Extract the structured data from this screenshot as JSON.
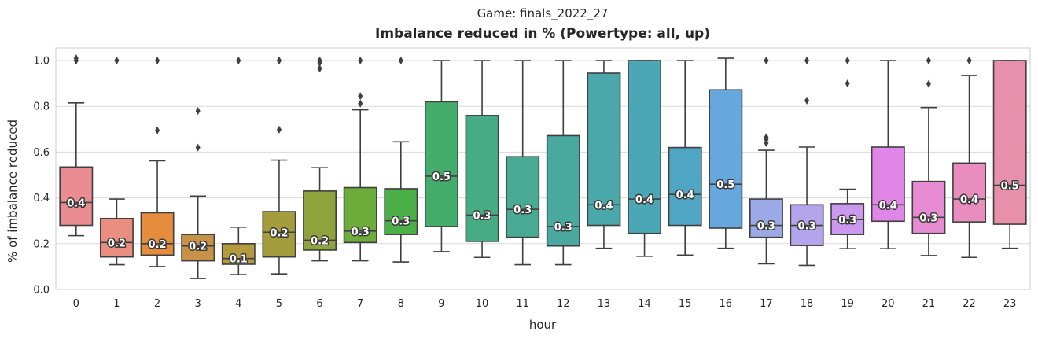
{
  "suptitle": "Game: finals_2022_27",
  "chart_data": {
    "type": "box",
    "title": "Imbalance reduced in % (Powertype: all, up)",
    "xlabel": "hour",
    "ylabel": "% of imbalance reduced",
    "ylim": [
      0.0,
      1.05
    ],
    "yticks": [
      0.0,
      0.2,
      0.4,
      0.6,
      0.8,
      1.0
    ],
    "ytick_labels": [
      "0.0",
      "0.2",
      "0.4",
      "0.6",
      "0.8",
      "1.0"
    ],
    "grid": true,
    "categories": [
      "0",
      "1",
      "2",
      "3",
      "4",
      "5",
      "6",
      "7",
      "8",
      "9",
      "10",
      "11",
      "12",
      "13",
      "14",
      "15",
      "16",
      "17",
      "18",
      "19",
      "20",
      "21",
      "22",
      "23"
    ],
    "boxes": [
      {
        "hour": "0",
        "color": "#e98d93",
        "whislo": 0.235,
        "q1": 0.28,
        "median": 0.38,
        "q3": 0.535,
        "whishi": 0.815,
        "fliers": [
          1.0,
          1.0,
          1.01
        ],
        "median_label": "0.4"
      },
      {
        "hour": "1",
        "color": "#ea8f7f",
        "whislo": 0.108,
        "q1": 0.142,
        "median": 0.205,
        "q3": 0.31,
        "whishi": 0.395,
        "fliers": [
          1.0,
          1.0
        ],
        "median_label": "0.2"
      },
      {
        "hour": "2",
        "color": "#e58d3d",
        "whislo": 0.1,
        "q1": 0.15,
        "median": 0.2,
        "q3": 0.335,
        "whishi": 0.562,
        "fliers": [
          0.695,
          1.0
        ],
        "median_label": "0.2"
      },
      {
        "hour": "3",
        "color": "#c79247",
        "whislo": 0.048,
        "q1": 0.125,
        "median": 0.19,
        "q3": 0.24,
        "whishi": 0.408,
        "fliers": [
          0.62,
          0.78
        ],
        "median_label": "0.2"
      },
      {
        "hour": "4",
        "color": "#b49a3e",
        "whislo": 0.065,
        "q1": 0.11,
        "median": 0.135,
        "q3": 0.2,
        "whishi": 0.272,
        "fliers": [
          1.0
        ],
        "median_label": "0.1"
      },
      {
        "hour": "5",
        "color": "#a39d3d",
        "whislo": 0.068,
        "q1": 0.142,
        "median": 0.25,
        "q3": 0.34,
        "whishi": 0.565,
        "fliers": [
          0.698,
          1.0,
          1.0
        ],
        "median_label": "0.2"
      },
      {
        "hour": "6",
        "color": "#8ea33b",
        "whislo": 0.125,
        "q1": 0.172,
        "median": 0.215,
        "q3": 0.43,
        "whishi": 0.532,
        "fliers": [
          0.965,
          0.99,
          1.0
        ],
        "median_label": "0.2"
      },
      {
        "hour": "7",
        "color": "#6bac3b",
        "whislo": 0.125,
        "q1": 0.205,
        "median": 0.255,
        "q3": 0.445,
        "whishi": 0.785,
        "fliers": [
          0.812,
          0.845,
          1.0
        ],
        "median_label": "0.3"
      },
      {
        "hour": "8",
        "color": "#4cb049",
        "whislo": 0.12,
        "q1": 0.24,
        "median": 0.3,
        "q3": 0.44,
        "whishi": 0.645,
        "fliers": [
          1.0
        ],
        "median_label": "0.3"
      },
      {
        "hour": "9",
        "color": "#45ad6c",
        "whislo": 0.165,
        "q1": 0.275,
        "median": 0.495,
        "q3": 0.82,
        "whishi": 1.0,
        "fliers": [],
        "median_label": "0.5"
      },
      {
        "hour": "10",
        "color": "#47ab85",
        "whislo": 0.14,
        "q1": 0.21,
        "median": 0.325,
        "q3": 0.76,
        "whishi": 1.0,
        "fliers": [],
        "median_label": "0.3"
      },
      {
        "hour": "11",
        "color": "#48aa93",
        "whislo": 0.108,
        "q1": 0.228,
        "median": 0.35,
        "q3": 0.58,
        "whishi": 1.0,
        "fliers": [],
        "median_label": "0.3"
      },
      {
        "hour": "12",
        "color": "#49a99e",
        "whislo": 0.108,
        "q1": 0.19,
        "median": 0.275,
        "q3": 0.672,
        "whishi": 1.0,
        "fliers": [],
        "median_label": "0.3"
      },
      {
        "hour": "13",
        "color": "#4aa8aa",
        "whislo": 0.18,
        "q1": 0.28,
        "median": 0.37,
        "q3": 0.945,
        "whishi": 1.0,
        "fliers": [],
        "median_label": "0.4"
      },
      {
        "hour": "14",
        "color": "#4ba7b5",
        "whislo": 0.145,
        "q1": 0.245,
        "median": 0.395,
        "q3": 1.0,
        "whishi": 1.0,
        "fliers": [],
        "median_label": "0.4"
      },
      {
        "hour": "15",
        "color": "#4ea6c4",
        "whislo": 0.15,
        "q1": 0.28,
        "median": 0.415,
        "q3": 0.62,
        "whishi": 1.0,
        "fliers": [],
        "median_label": "0.4"
      },
      {
        "hour": "16",
        "color": "#66a8dd",
        "whislo": 0.18,
        "q1": 0.268,
        "median": 0.46,
        "q3": 0.872,
        "whishi": 1.01,
        "fliers": [],
        "median_label": "0.5"
      },
      {
        "hour": "17",
        "color": "#9ba9e7",
        "whislo": 0.112,
        "q1": 0.228,
        "median": 0.28,
        "q3": 0.395,
        "whishi": 0.608,
        "fliers": [
          0.64,
          0.655,
          0.665,
          1.0,
          1.0
        ],
        "median_label": "0.3"
      },
      {
        "hour": "18",
        "color": "#b4a4ec",
        "whislo": 0.105,
        "q1": 0.192,
        "median": 0.28,
        "q3": 0.37,
        "whishi": 0.622,
        "fliers": [
          0.825,
          1.0
        ],
        "median_label": "0.3"
      },
      {
        "hour": "19",
        "color": "#cc97ee",
        "whislo": 0.178,
        "q1": 0.24,
        "median": 0.305,
        "q3": 0.375,
        "whishi": 0.438,
        "fliers": [
          0.9,
          1.0
        ],
        "median_label": "0.3"
      },
      {
        "hour": "20",
        "color": "#e086e6",
        "whislo": 0.178,
        "q1": 0.298,
        "median": 0.37,
        "q3": 0.622,
        "whishi": 1.0,
        "fliers": [],
        "median_label": "0.4"
      },
      {
        "hour": "21",
        "color": "#e78bd2",
        "whislo": 0.148,
        "q1": 0.245,
        "median": 0.315,
        "q3": 0.472,
        "whishi": 0.795,
        "fliers": [
          0.898,
          1.0,
          1.0
        ],
        "median_label": "0.3"
      },
      {
        "hour": "22",
        "color": "#e98dbe",
        "whislo": 0.14,
        "q1": 0.295,
        "median": 0.395,
        "q3": 0.552,
        "whishi": 0.935,
        "fliers": [
          1.0,
          1.0
        ],
        "median_label": "0.4"
      },
      {
        "hour": "23",
        "color": "#e88fac",
        "whislo": 0.18,
        "q1": 0.285,
        "median": 0.455,
        "q3": 1.0,
        "whishi": 1.0,
        "fliers": [],
        "median_label": "0.5"
      }
    ]
  }
}
